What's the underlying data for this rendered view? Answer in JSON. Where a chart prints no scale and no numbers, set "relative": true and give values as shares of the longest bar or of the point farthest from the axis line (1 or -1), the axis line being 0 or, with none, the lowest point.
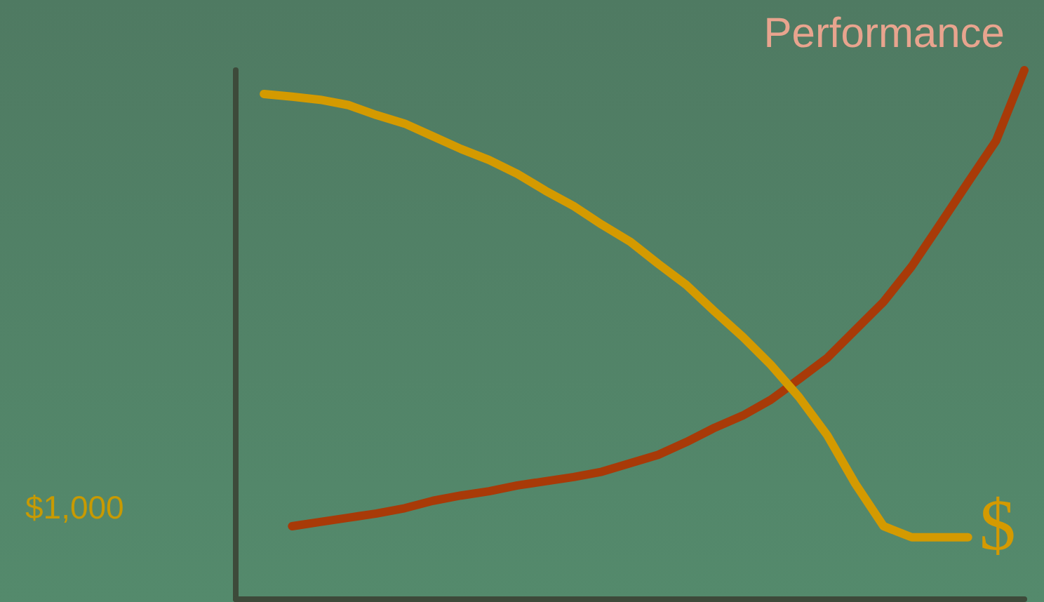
{
  "chart_data": {
    "type": "line",
    "relative": true,
    "legend": false,
    "grid": false,
    "marker": "none",
    "line_style": "solid",
    "categories": [
      null,
      null,
      null,
      null,
      null,
      null,
      null,
      null,
      null,
      null,
      null,
      null,
      null,
      null,
      null,
      null,
      null,
      null,
      null,
      null,
      null,
      null,
      null,
      null,
      null,
      null,
      null,
      null,
      null
    ],
    "series": [
      {
        "name": "Performance",
        "color": "#a83a08",
        "values": [
          null,
          null,
          0.138,
          0.146,
          0.154,
          0.162,
          0.172,
          0.186,
          0.196,
          0.204,
          0.215,
          0.223,
          0.231,
          0.241,
          0.257,
          0.273,
          0.297,
          0.324,
          0.347,
          0.377,
          0.416,
          0.456,
          0.509,
          0.562,
          0.629,
          0.708,
          0.788,
          0.867,
          1.0
        ]
      },
      {
        "name": "$",
        "color": "#d49a00",
        "values": [
          null,
          0.955,
          0.95,
          0.944,
          0.934,
          0.915,
          0.899,
          0.875,
          0.851,
          0.83,
          0.804,
          0.772,
          0.743,
          0.708,
          0.676,
          0.634,
          0.594,
          0.544,
          0.496,
          0.443,
          0.382,
          0.31,
          0.218,
          0.138,
          0.117,
          0.117,
          0.117,
          null,
          null
        ]
      }
    ],
    "annotations": [
      "$1,000"
    ]
  }
}
